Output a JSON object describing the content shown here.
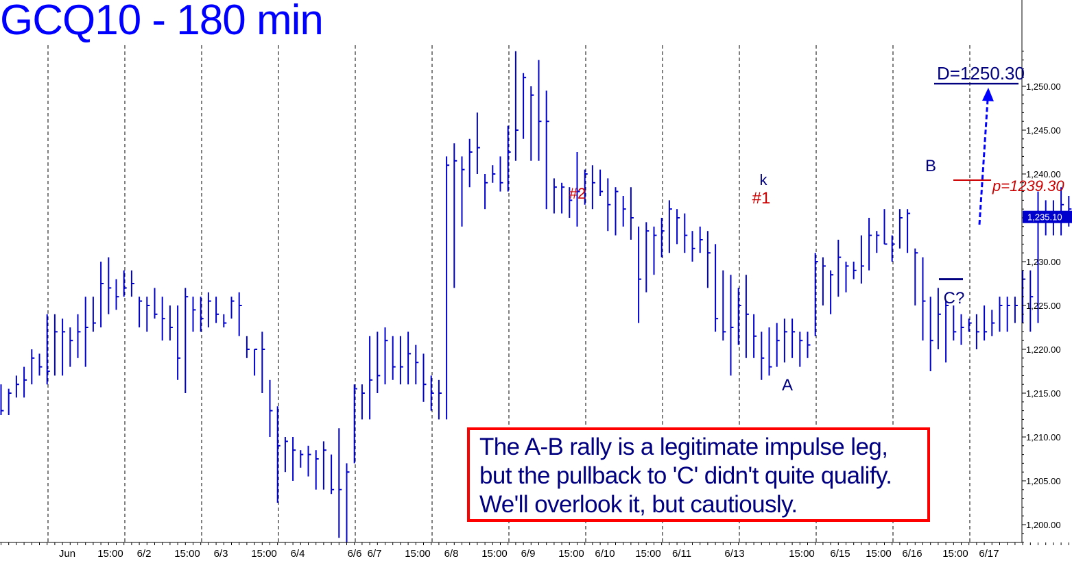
{
  "title": "GCQ10 - 180 min",
  "note_lines": [
    "The A-B rally is a legitimate impulse leg,",
    "but the pullback to 'C' didn't quite qualify.",
    "We'll overlook it, but cautiously."
  ],
  "colors": {
    "title": "#0000ff",
    "bars": "#0000cc",
    "annotation_navy": "#000080",
    "annotation_red": "#cc0000",
    "note_border": "#ff0000",
    "last_price_tag": "#0000cc"
  },
  "chart_data": {
    "type": "ohlc",
    "ylim": [
      1197,
      1255
    ],
    "y_ticks": [
      "1,200.00",
      "1,205.00",
      "1,210.00",
      "1,215.00",
      "1,220.00",
      "1,225.00",
      "1,230.00",
      "1,235.00",
      "1,240.00",
      "1,245.00",
      "1,250.00"
    ],
    "y_tick_values": [
      1200,
      1205,
      1210,
      1215,
      1220,
      1225,
      1230,
      1235,
      1240,
      1245,
      1250
    ],
    "x_labels": [
      "Jun",
      "15:00",
      "6/2",
      "15:00",
      "6/3",
      "15:00",
      "6/4",
      "6/6",
      "6/7",
      "15:00",
      "6/8",
      "15:00",
      "6/9",
      "15:00",
      "6/10",
      "15:00",
      "6/11",
      "6/13",
      "15:00",
      "6/15",
      "15:00",
      "6/16",
      "15:00",
      "6/17"
    ],
    "last_price_label": "1,235.10",
    "last_price": 1235.1,
    "bars": [
      [
        1216,
        1212.5,
        1213
      ],
      [
        1215.5,
        1212.5,
        1215
      ],
      [
        1217,
        1214.5,
        1216
      ],
      [
        1218,
        1214.5,
        1216.5
      ],
      [
        1220,
        1216,
        1219
      ],
      [
        1219.5,
        1217,
        1218
      ],
      [
        1224,
        1216,
        1217.5
      ],
      [
        1224,
        1217,
        1222
      ],
      [
        1223.5,
        1217,
        1222
      ],
      [
        1222.5,
        1218,
        1221
      ],
      [
        1224,
        1219,
        1222
      ],
      [
        1226,
        1218,
        1222.5
      ],
      [
        1226,
        1222,
        1223
      ],
      [
        1230,
        1222.5,
        1227.5
      ],
      [
        1230.5,
        1224,
        1227
      ],
      [
        1228,
        1224.5,
        1226
      ],
      [
        1229,
        1226,
        1227
      ],
      [
        1229,
        1226,
        1227.5
      ],
      [
        1226,
        1222.5,
        1225.5
      ],
      [
        1226,
        1222,
        1225
      ],
      [
        1227,
        1223.5,
        1224
      ],
      [
        1226,
        1221,
        1223.5
      ],
      [
        1225,
        1221,
        1222.5
      ],
      [
        1225,
        1216.5,
        1219
      ],
      [
        1227,
        1215,
        1226
      ],
      [
        1226,
        1222,
        1224.5
      ],
      [
        1226,
        1222,
        1223.5
      ],
      [
        1226.5,
        1222.5,
        1225.5
      ],
      [
        1226,
        1223,
        1224
      ],
      [
        1224,
        1222.5,
        1223
      ],
      [
        1226,
        1223.5,
        1225.5
      ],
      [
        1226.5,
        1221.5,
        1225
      ],
      [
        1221.5,
        1219,
        1220
      ],
      [
        1220,
        1217,
        1220
      ],
      [
        1222,
        1215,
        1220
      ],
      [
        1216.5,
        1210,
        1213
      ],
      [
        1213.5,
        1202.5,
        1209
      ],
      [
        1210,
        1206,
        1209.5
      ],
      [
        1210,
        1205,
        1208.5
      ],
      [
        1208.5,
        1206.5,
        1208
      ],
      [
        1209,
        1205.5,
        1208
      ],
      [
        1208.5,
        1204,
        1207.5
      ],
      [
        1209.5,
        1204,
        1208.5
      ],
      [
        1208,
        1203.5,
        1204
      ],
      [
        1211,
        1198.5,
        1204
      ],
      [
        1207,
        1198,
        1206
      ],
      [
        1216,
        1207,
        1215.5
      ],
      [
        1216,
        1212,
        1215
      ],
      [
        1221.5,
        1212,
        1216.5
      ],
      [
        1222,
        1215,
        1217
      ],
      [
        1222.5,
        1216,
        1221
      ],
      [
        1221.5,
        1216.5,
        1218
      ],
      [
        1221.5,
        1216,
        1218
      ],
      [
        1222,
        1216,
        1219.5
      ],
      [
        1220.5,
        1216,
        1218.5
      ],
      [
        1219.5,
        1214,
        1216
      ],
      [
        1217,
        1213,
        1215
      ],
      [
        1216.5,
        1212,
        1215
      ],
      [
        1242,
        1212,
        1241
      ],
      [
        1243.5,
        1227,
        1241.5
      ],
      [
        1242,
        1234,
        1240.5
      ],
      [
        1244,
        1238.5,
        1242.5
      ],
      [
        1247,
        1240,
        1243
      ],
      [
        1240,
        1236,
        1239
      ],
      [
        1241,
        1239,
        1240
      ],
      [
        1242,
        1238,
        1239
      ],
      [
        1245.5,
        1238,
        1242.5
      ],
      [
        1254,
        1241.5,
        1245
      ],
      [
        1251.5,
        1244,
        1251
      ],
      [
        1250,
        1241.5,
        1249
      ],
      [
        1253,
        1241.5,
        1246
      ],
      [
        1249.5,
        1236,
        1246
      ],
      [
        1239.5,
        1235.5,
        1238.5
      ],
      [
        1239,
        1235.5,
        1238.5
      ],
      [
        1238.5,
        1235,
        1237
      ],
      [
        1242.5,
        1234,
        1238
      ],
      [
        1240.5,
        1236.5,
        1240
      ],
      [
        1241,
        1236,
        1239
      ],
      [
        1240.5,
        1237.5,
        1238
      ],
      [
        1239.5,
        1233.5,
        1236.5
      ],
      [
        1238.5,
        1233,
        1238
      ],
      [
        1237.5,
        1234,
        1236
      ],
      [
        1238.5,
        1232.5,
        1235
      ],
      [
        1234,
        1223,
        1228
      ],
      [
        1234.5,
        1226.5,
        1233.5
      ],
      [
        1234,
        1228.5,
        1233
      ],
      [
        1235,
        1230.5,
        1233.5
      ],
      [
        1237,
        1231,
        1236
      ],
      [
        1236,
        1232,
        1235
      ],
      [
        1235.5,
        1231,
        1233
      ],
      [
        1233.5,
        1230,
        1231.5
      ],
      [
        1234,
        1231,
        1232.5
      ],
      [
        1233.5,
        1227,
        1231
      ],
      [
        1232,
        1222,
        1223.5
      ],
      [
        1229,
        1221,
        1222
      ],
      [
        1228.5,
        1217,
        1222.5
      ],
      [
        1227,
        1220.5,
        1225
      ],
      [
        1228.5,
        1219,
        1224
      ],
      [
        1224,
        1219,
        1221.5
      ],
      [
        1222,
        1216.5,
        1219
      ],
      [
        1222.5,
        1217,
        1218
      ],
      [
        1223,
        1218,
        1221
      ],
      [
        1223.5,
        1218.5,
        1222
      ],
      [
        1223.5,
        1219,
        1222
      ],
      [
        1222,
        1218,
        1221
      ],
      [
        1222,
        1219,
        1220.5
      ],
      [
        1231,
        1221.5,
        1230
      ],
      [
        1230.5,
        1225,
        1229.5
      ],
      [
        1229,
        1224,
        1228.5
      ],
      [
        1232.5,
        1226,
        1230.5
      ],
      [
        1230,
        1226.5,
        1229.5
      ],
      [
        1230,
        1228,
        1229
      ],
      [
        1233,
        1227.5,
        1229.5
      ],
      [
        1235,
        1229,
        1233
      ],
      [
        1233.5,
        1231,
        1233
      ],
      [
        1236,
        1232,
        1232
      ],
      [
        1233,
        1230,
        1232
      ],
      [
        1236,
        1231.5,
        1235
      ],
      [
        1236,
        1231,
        1235.5
      ],
      [
        1231.5,
        1225,
        1231
      ],
      [
        1230.5,
        1221,
        1225.5
      ],
      [
        1226,
        1217.5,
        1221
      ],
      [
        1227,
        1220,
        1224
      ],
      [
        1225.5,
        1218.5,
        1225
      ],
      [
        1225,
        1221,
        1222
      ],
      [
        1224,
        1220.5,
        1222.5
      ],
      [
        1223.5,
        1222,
        1223
      ],
      [
        1224,
        1220,
        1222
      ],
      [
        1225,
        1221,
        1222
      ],
      [
        1224.5,
        1221.5,
        1223
      ],
      [
        1226,
        1222,
        1225
      ],
      [
        1226,
        1222,
        1225
      ],
      [
        1226,
        1223,
        1225
      ],
      [
        1229,
        1223,
        1228
      ],
      [
        1229,
        1222,
        1226
      ],
      [
        1238,
        1223,
        1235
      ],
      [
        1237,
        1233,
        1235
      ],
      [
        1237,
        1233,
        1235
      ],
      [
        1238.5,
        1233,
        1236.5
      ],
      [
        1237.5,
        1234,
        1236
      ],
      [
        1238,
        1233.5,
        1235.5
      ],
      [
        1237,
        1234,
        1236
      ],
      [
        1238,
        1234.5,
        1235.5
      ],
      [
        1235,
        1232.5,
        1234.5
      ],
      [
        1237,
        1233,
        1236
      ],
      [
        1240,
        1232,
        1237.5
      ],
      [
        1237,
        1231.5,
        1233.5
      ],
      [
        1236.5,
        1230,
        1232.5
      ],
      [
        1233,
        1227.5,
        1232.5
      ],
      [
        1233.5,
        1229.5,
        1232
      ],
      [
        1233,
        1230.5,
        1231.5
      ],
      [
        1235.5,
        1231.5,
        1235.1
      ]
    ],
    "annotations": [
      {
        "text": "#2",
        "price": 1237,
        "color": "red"
      },
      {
        "text": "k",
        "price": 1236,
        "color": "navy"
      },
      {
        "text": "#1",
        "price": 1236,
        "color": "red"
      },
      {
        "text": "A",
        "price": 1217,
        "color": "navy"
      },
      {
        "text": "B",
        "price": 1240,
        "color": "navy"
      },
      {
        "text": "C?",
        "price": 1228,
        "color": "navy"
      },
      {
        "text": "p=1239.30",
        "price": 1239.3,
        "color": "red"
      },
      {
        "text": "D=1250.30",
        "price": 1250.3,
        "color": "navy"
      }
    ],
    "grid": "vertical-dashed-at-day-breaks"
  }
}
